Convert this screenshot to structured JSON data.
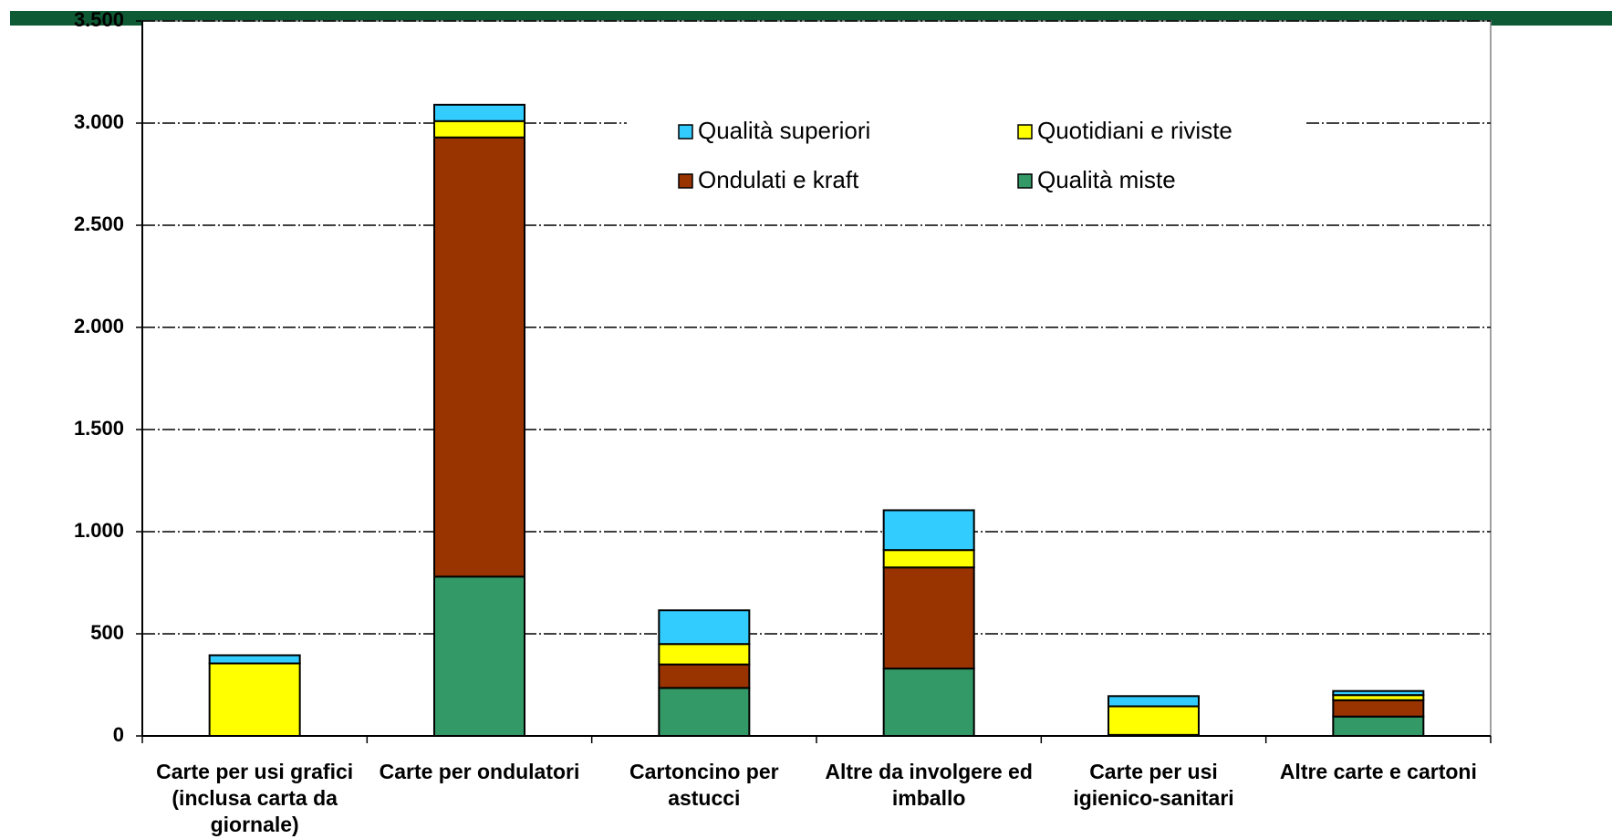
{
  "chart_data": {
    "type": "stacked-bar",
    "categories": [
      "Carte per usi grafici (inclusa carta da giornale)",
      "Carte per ondulatori",
      "Cartoncino per astucci",
      "Altre da involgere ed imballo",
      "Carte per usi igienico-sanitari",
      "Altre carte e cartoni"
    ],
    "series": [
      {
        "name": "Qualità miste",
        "color": "#339966",
        "values": [
          0,
          780,
          235,
          330,
          5,
          95
        ]
      },
      {
        "name": "Ondulati e kraft",
        "color": "#993300",
        "values": [
          0,
          2150,
          115,
          495,
          0,
          80
        ]
      },
      {
        "name": "Quotidiani e riviste",
        "color": "#ffff00",
        "values": [
          355,
          80,
          100,
          85,
          140,
          25
        ]
      },
      {
        "name": "Qualità superiori",
        "color": "#33ccff",
        "values": [
          40,
          80,
          165,
          195,
          50,
          20
        ]
      }
    ],
    "ylim": [
      0,
      3500
    ],
    "yticks": [
      0,
      {
        "value": 500,
        "label": "500"
      },
      {
        "value": 1000,
        "label": "1.000"
      },
      {
        "value": 1500,
        "label": "1.500"
      },
      {
        "value": 2000,
        "label": "2.000"
      },
      {
        "value": 2500,
        "label": "2.500"
      },
      {
        "value": 3000,
        "label": "3.000"
      },
      {
        "value": 3500,
        "label": "3.500"
      }
    ],
    "grid": true,
    "legend_order": [
      3,
      2,
      1,
      0
    ]
  }
}
